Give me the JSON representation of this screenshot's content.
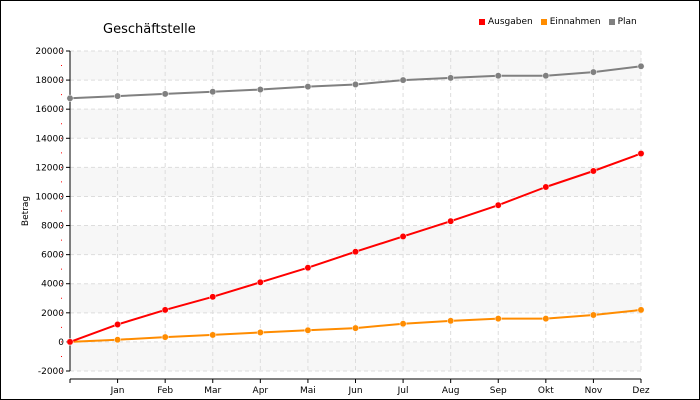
{
  "chart_data": {
    "type": "line",
    "title": "Geschäftstelle",
    "xlabel": "",
    "ylabel": "Betrag",
    "ylim": [
      -2000,
      20000
    ],
    "yticks": [
      -2000,
      0,
      2000,
      4000,
      6000,
      8000,
      10000,
      12000,
      14000,
      16000,
      18000,
      20000
    ],
    "categories": [
      "",
      "Jan",
      "Feb",
      "Mar",
      "Apr",
      "Mai",
      "Jun",
      "Jul",
      "Aug",
      "Sep",
      "Okt",
      "Nov",
      "Dez"
    ],
    "legend_position": "top-right",
    "grid": true,
    "series": [
      {
        "name": "Ausgaben",
        "color": "#ff0000",
        "values": [
          0,
          1200,
          2200,
          3100,
          4100,
          5100,
          6200,
          7250,
          8300,
          9400,
          10650,
          11750,
          12950
        ]
      },
      {
        "name": "Einnahmen",
        "color": "#ff8c00",
        "values": [
          0,
          150,
          330,
          480,
          650,
          800,
          950,
          1250,
          1450,
          1600,
          1600,
          1850,
          2200
        ]
      },
      {
        "name": "Plan",
        "color": "#808080",
        "values": [
          16750,
          16900,
          17050,
          17200,
          17350,
          17550,
          17700,
          18000,
          18150,
          18300,
          18300,
          18550,
          18950
        ]
      }
    ]
  }
}
